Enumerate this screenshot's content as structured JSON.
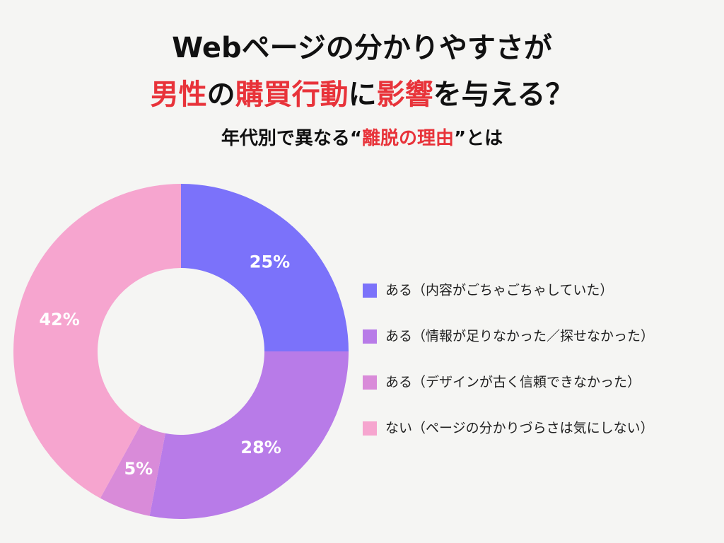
{
  "chart_data": {
    "type": "donut",
    "title": [
      [
        {
          "text": "Webページの分かりやすさが",
          "color": "#111111"
        }
      ],
      [
        {
          "text": "男性",
          "color": "#e8333a"
        },
        {
          "text": "の",
          "color": "#111111"
        },
        {
          "text": "購買行動",
          "color": "#e8333a"
        },
        {
          "text": "に",
          "color": "#111111"
        },
        {
          "text": "影響",
          "color": "#e8333a"
        },
        {
          "text": "を与える？",
          "color": "#111111"
        }
      ]
    ],
    "subtitle": [
      {
        "text": "年代別で異なる“",
        "color": "#111111"
      },
      {
        "text": "離脱の理由",
        "color": "#e8333a"
      },
      {
        "text": "”とは",
        "color": "#111111"
      }
    ],
    "categories": [
      "ある（内容がごちゃごちゃしていた）",
      "ある（情報が足りなかった／探せなかった）",
      "ある（デザインが古く信頼できなかった）",
      "ない（ページの分かりづらさは気にしない）"
    ],
    "values": [
      25,
      28,
      5,
      42
    ],
    "value_labels": [
      "25%",
      "28%",
      "5%",
      "42%"
    ],
    "colors": [
      "#7b72fa",
      "#b87be8",
      "#d98bd9",
      "#f6a5cf"
    ],
    "legend": "right"
  }
}
